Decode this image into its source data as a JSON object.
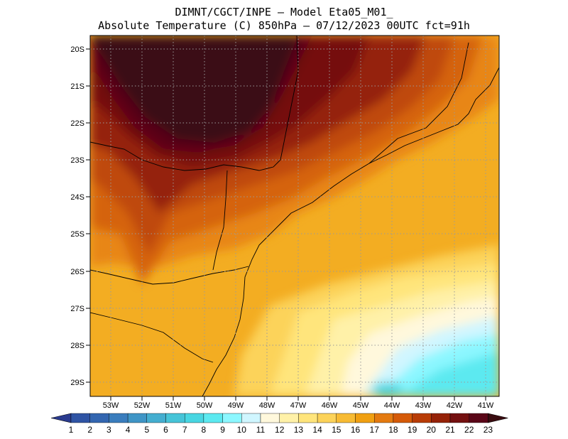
{
  "header": {
    "line1": "DIMNT/CGCT/INPE –  Model Eta05_M01_",
    "line2": "Absolute Temperature (C) 850hPa –  07/12/2023 00UTC fct=91h"
  },
  "map": {
    "lat_labels": [
      "20S",
      "21S",
      "22S",
      "23S",
      "24S",
      "25S",
      "26S",
      "27S",
      "28S",
      "29S"
    ],
    "lon_labels": [
      "53W",
      "52W",
      "51W",
      "50W",
      "49W",
      "48W",
      "47W",
      "46W",
      "45W",
      "44W",
      "43W",
      "42W",
      "41W"
    ]
  },
  "colorbar": {
    "labels": [
      "1",
      "2",
      "3",
      "4",
      "5",
      "6",
      "7",
      "8",
      "9",
      "10",
      "11",
      "12",
      "13",
      "14",
      "15",
      "16",
      "17",
      "18",
      "19",
      "20",
      "21",
      "22",
      "23"
    ],
    "colors": [
      "#2a3b8f",
      "#2f54a4",
      "#3366b0",
      "#3a7dbd",
      "#3f95c6",
      "#44aed0",
      "#46c4d8",
      "#48d6e2",
      "#5ce9f0",
      "#8cf7ff",
      "#d0f6ff",
      "#fff8dc",
      "#fff1a8",
      "#ffe57c",
      "#fcd35a",
      "#f7bb34",
      "#f0a012",
      "#e47a10",
      "#d55a08",
      "#b83c06",
      "#952208",
      "#741010",
      "#5a0618",
      "#3a0c10"
    ]
  }
}
